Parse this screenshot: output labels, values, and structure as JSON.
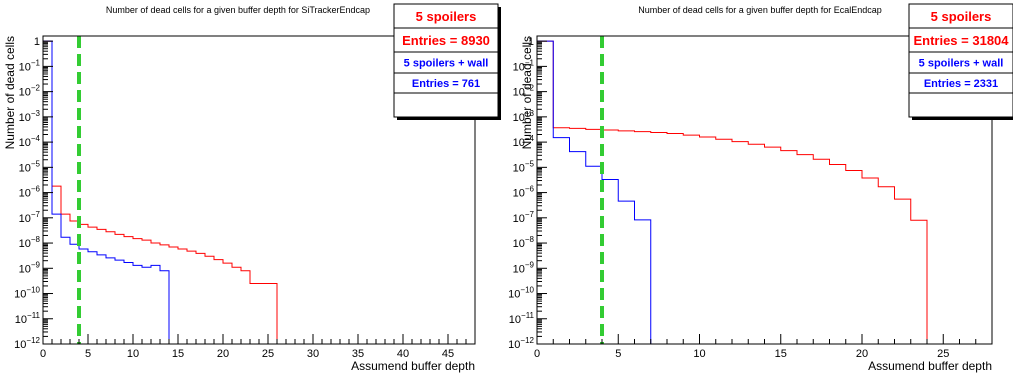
{
  "chart_data": [
    {
      "type": "histogram",
      "title": "Number of dead cells for a given buffer depth for SiTrackerEndcap",
      "xlabel": "Assumend buffer depth",
      "ylabel": "Number of dead cells",
      "xlim": [
        0,
        48
      ],
      "ylim": [
        1e-12,
        1.6
      ],
      "yscale": "log",
      "x_ticks": [
        0,
        5,
        10,
        15,
        20,
        25,
        30,
        35,
        40,
        45
      ],
      "y_ticks": [
        {
          "v": 1,
          "base": "1",
          "exp": ""
        },
        {
          "v": 0.1,
          "base": "10",
          "exp": "−1"
        },
        {
          "v": 0.01,
          "base": "10",
          "exp": "−2"
        },
        {
          "v": 0.001,
          "base": "10",
          "exp": "−3"
        },
        {
          "v": 0.0001,
          "base": "10",
          "exp": "−4"
        },
        {
          "v": 1e-05,
          "base": "10",
          "exp": "−5"
        },
        {
          "v": 1e-06,
          "base": "10",
          "exp": "−6"
        },
        {
          "v": 1e-07,
          "base": "10",
          "exp": "−7"
        },
        {
          "v": 1e-08,
          "base": "10",
          "exp": "−8"
        },
        {
          "v": 1e-09,
          "base": "10",
          "exp": "−9"
        },
        {
          "v": 1e-10,
          "base": "10",
          "exp": "−10"
        },
        {
          "v": 1e-11,
          "base": "10",
          "exp": "−11"
        },
        {
          "v": 1e-12,
          "base": "10",
          "exp": "−12"
        }
      ],
      "marker_line": {
        "x": 4,
        "color": "#33cc33"
      },
      "bin_width": 1,
      "series": [
        {
          "name": "5 spoilers",
          "color": "#ff0000",
          "entries_label": "Entries = 8930",
          "values": [
            1.0,
            1.8e-06,
            1.4e-07,
            7.5e-08,
            5.5e-08,
            4.3e-08,
            3.5e-08,
            2.8e-08,
            2.2e-08,
            1.8e-08,
            1.5e-08,
            1.3e-08,
            1e-08,
            8.5e-09,
            7e-09,
            5.8e-09,
            4.8e-09,
            3.9e-09,
            3e-09,
            2.2e-09,
            1.6e-09,
            1.1e-09,
            8e-10,
            2.5e-10,
            2.5e-10,
            2.5e-10
          ]
        },
        {
          "name": "5 spoilers + wall",
          "color": "#0000ff",
          "entries_label": "Entries = 761",
          "values": [
            1.0,
            1.4e-07,
            1.7e-08,
            9e-09,
            5.8e-09,
            4.5e-09,
            3.4e-09,
            2.6e-09,
            2.1e-09,
            1.7e-09,
            1.3e-09,
            1.1e-09,
            1.3e-09,
            8e-10
          ]
        }
      ]
    },
    {
      "type": "histogram",
      "title": "Number of dead cells for a given buffer depth for EcalEndcap",
      "xlabel": "Assumend buffer depth",
      "ylabel": "Number of dead cells",
      "xlim": [
        0,
        28
      ],
      "ylim": [
        1e-12,
        1.6
      ],
      "yscale": "log",
      "x_ticks": [
        0,
        5,
        10,
        15,
        20,
        25
      ],
      "y_ticks": [
        {
          "v": 1,
          "base": "1",
          "exp": ""
        },
        {
          "v": 0.1,
          "base": "10",
          "exp": "−1"
        },
        {
          "v": 0.01,
          "base": "10",
          "exp": "−2"
        },
        {
          "v": 0.001,
          "base": "10",
          "exp": "−3"
        },
        {
          "v": 0.0001,
          "base": "10",
          "exp": "−4"
        },
        {
          "v": 1e-05,
          "base": "10",
          "exp": "−5"
        },
        {
          "v": 1e-06,
          "base": "10",
          "exp": "−6"
        },
        {
          "v": 1e-07,
          "base": "10",
          "exp": "−7"
        },
        {
          "v": 1e-08,
          "base": "10",
          "exp": "−8"
        },
        {
          "v": 1e-09,
          "base": "10",
          "exp": "−9"
        },
        {
          "v": 1e-10,
          "base": "10",
          "exp": "−10"
        },
        {
          "v": 1e-11,
          "base": "10",
          "exp": "−11"
        },
        {
          "v": 1e-12,
          "base": "10",
          "exp": "−12"
        }
      ],
      "marker_line": {
        "x": 4,
        "color": "#33cc33"
      },
      "bin_width": 1,
      "series": [
        {
          "name": "5 spoilers",
          "color": "#ff0000",
          "entries_label": "Entries = 31804",
          "values": [
            1.0,
            0.00037,
            0.00035,
            0.00032,
            0.0003,
            0.00028,
            0.00026,
            0.00024,
            0.00022,
            0.00019,
            0.00016,
            0.00013,
            0.000105,
            8.2e-05,
            6.3e-05,
            4.6e-05,
            3.2e-05,
            2.1e-05,
            1.3e-05,
            7.5e-06,
            3.8e-06,
            1.7e-06,
            5.5e-07,
            8e-08
          ]
        },
        {
          "name": "5 spoilers + wall",
          "color": "#0000ff",
          "entries_label": "Entries = 2331",
          "values": [
            1.0,
            0.00015,
            4.2e-05,
            1.1e-05,
            3.3e-06,
            4.6e-07,
            8.3e-08
          ]
        }
      ]
    }
  ]
}
